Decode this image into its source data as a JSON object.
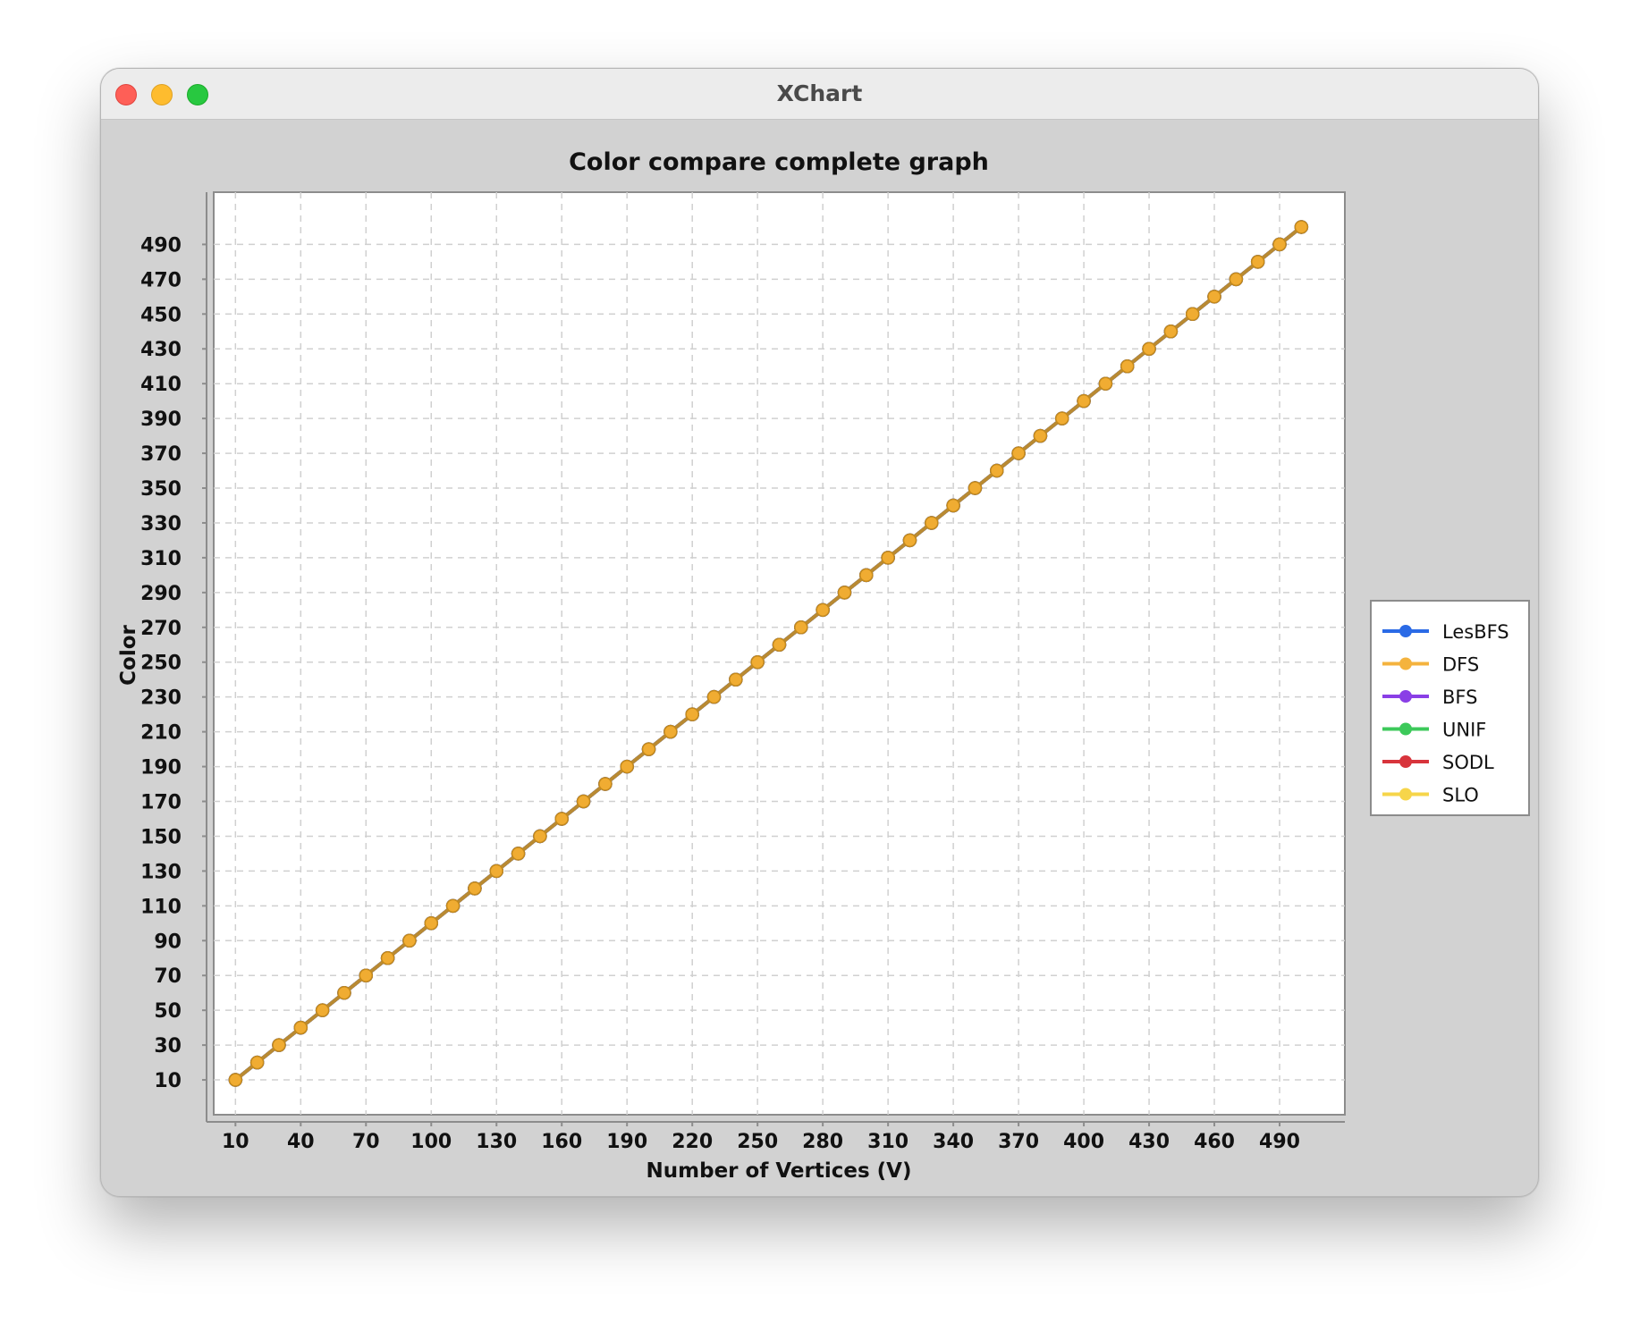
{
  "window": {
    "title": "XChart"
  },
  "chart_data": {
    "type": "line",
    "title": "Color compare complete graph",
    "xlabel": "Number of Vertices (V)",
    "ylabel": "Color",
    "xlim": [
      0,
      520
    ],
    "ylim": [
      -10,
      520
    ],
    "x_ticks": [
      10,
      40,
      70,
      100,
      130,
      160,
      190,
      220,
      250,
      280,
      310,
      340,
      370,
      400,
      430,
      460,
      490
    ],
    "y_ticks": [
      10,
      30,
      50,
      70,
      90,
      110,
      130,
      150,
      170,
      190,
      210,
      230,
      250,
      270,
      290,
      310,
      330,
      350,
      370,
      390,
      410,
      430,
      450,
      470,
      490
    ],
    "grid": true,
    "legend_position": "right",
    "x": [
      10,
      20,
      30,
      40,
      50,
      60,
      70,
      80,
      90,
      100,
      110,
      120,
      130,
      140,
      150,
      160,
      170,
      180,
      190,
      200,
      210,
      220,
      230,
      240,
      250,
      260,
      270,
      280,
      290,
      300,
      310,
      320,
      330,
      340,
      350,
      360,
      370,
      380,
      390,
      400,
      410,
      420,
      430,
      440,
      450,
      460,
      470,
      480,
      490,
      500
    ],
    "series": [
      {
        "name": "LesBFS",
        "color": "#2a6ae6",
        "values": [
          10,
          20,
          30,
          40,
          50,
          60,
          70,
          80,
          90,
          100,
          110,
          120,
          130,
          140,
          150,
          160,
          170,
          180,
          190,
          200,
          210,
          220,
          230,
          240,
          250,
          260,
          270,
          280,
          290,
          300,
          310,
          320,
          330,
          340,
          350,
          360,
          370,
          380,
          390,
          400,
          410,
          420,
          430,
          440,
          450,
          460,
          470,
          480,
          490,
          500
        ]
      },
      {
        "name": "DFS",
        "color": "#f4b33e",
        "values": [
          10,
          20,
          30,
          40,
          50,
          60,
          70,
          80,
          90,
          100,
          110,
          120,
          130,
          140,
          150,
          160,
          170,
          180,
          190,
          200,
          210,
          220,
          230,
          240,
          250,
          260,
          270,
          280,
          290,
          300,
          310,
          320,
          330,
          340,
          350,
          360,
          370,
          380,
          390,
          400,
          410,
          420,
          430,
          440,
          450,
          460,
          470,
          480,
          490,
          500
        ]
      },
      {
        "name": "BFS",
        "color": "#8a3fe6",
        "values": [
          10,
          20,
          30,
          40,
          50,
          60,
          70,
          80,
          90,
          100,
          110,
          120,
          130,
          140,
          150,
          160,
          170,
          180,
          190,
          200,
          210,
          220,
          230,
          240,
          250,
          260,
          270,
          280,
          290,
          300,
          310,
          320,
          330,
          340,
          350,
          360,
          370,
          380,
          390,
          400,
          410,
          420,
          430,
          440,
          450,
          460,
          470,
          480,
          490,
          500
        ]
      },
      {
        "name": "UNIF",
        "color": "#3cc95a",
        "values": [
          10,
          20,
          30,
          40,
          50,
          60,
          70,
          80,
          90,
          100,
          110,
          120,
          130,
          140,
          150,
          160,
          170,
          180,
          190,
          200,
          210,
          220,
          230,
          240,
          250,
          260,
          270,
          280,
          290,
          300,
          310,
          320,
          330,
          340,
          350,
          360,
          370,
          380,
          390,
          400,
          410,
          420,
          430,
          440,
          450,
          460,
          470,
          480,
          490,
          500
        ]
      },
      {
        "name": "SODL",
        "color": "#d8343c",
        "values": [
          10,
          20,
          30,
          40,
          50,
          60,
          70,
          80,
          90,
          100,
          110,
          120,
          130,
          140,
          150,
          160,
          170,
          180,
          190,
          200,
          210,
          220,
          230,
          240,
          250,
          260,
          270,
          280,
          290,
          300,
          310,
          320,
          330,
          340,
          350,
          360,
          370,
          380,
          390,
          400,
          410,
          420,
          430,
          440,
          450,
          460,
          470,
          480,
          490,
          500
        ]
      },
      {
        "name": "SLO",
        "color": "#f6d54a",
        "values": [
          10,
          20,
          30,
          40,
          50,
          60,
          70,
          80,
          90,
          100,
          110,
          120,
          130,
          140,
          150,
          160,
          170,
          180,
          190,
          200,
          210,
          220,
          230,
          240,
          250,
          260,
          270,
          280,
          290,
          300,
          310,
          320,
          330,
          340,
          350,
          360,
          370,
          380,
          390,
          400,
          410,
          420,
          430,
          440,
          450,
          460,
          470,
          480,
          490,
          500
        ]
      }
    ],
    "marker_color": "#f0ac32",
    "marker_edge_color": "#c58a1c",
    "line_color": "#b98a32"
  }
}
